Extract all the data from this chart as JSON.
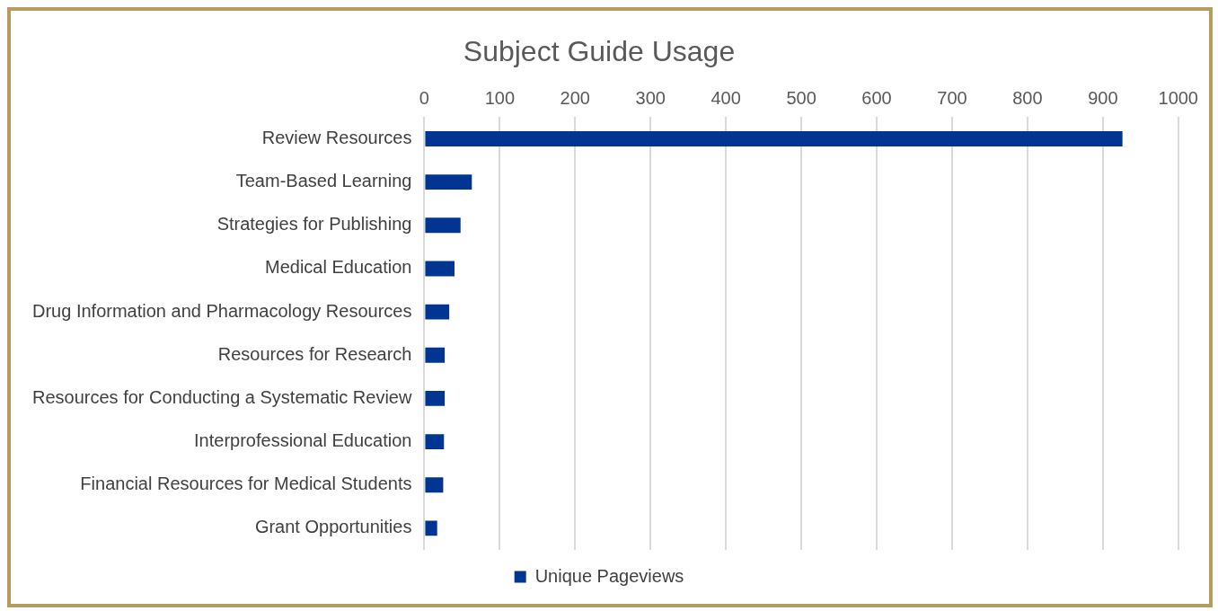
{
  "chart_data": {
    "type": "bar",
    "orientation": "horizontal",
    "title": "Subject Guide Usage",
    "categories": [
      "Review Resources",
      "Team-Based Learning",
      "Strategies for Publishing",
      "Medical Education",
      "Drug Information and Pharmacology Resources",
      "Resources for Research",
      "Resources for Conducting a Systematic Review",
      "Interprofessional Education",
      "Financial Resources for Medical Students",
      "Grant Opportunities"
    ],
    "series": [
      {
        "name": "Unique Pageviews",
        "color": "#003591",
        "values": [
          926,
          63,
          48,
          40,
          33,
          27,
          27,
          26,
          25,
          17
        ]
      }
    ],
    "xlim": [
      0,
      1000
    ],
    "xticks": [
      0,
      100,
      200,
      300,
      400,
      500,
      600,
      700,
      800,
      900,
      1000
    ],
    "grid": "x",
    "legend": "bottom"
  }
}
